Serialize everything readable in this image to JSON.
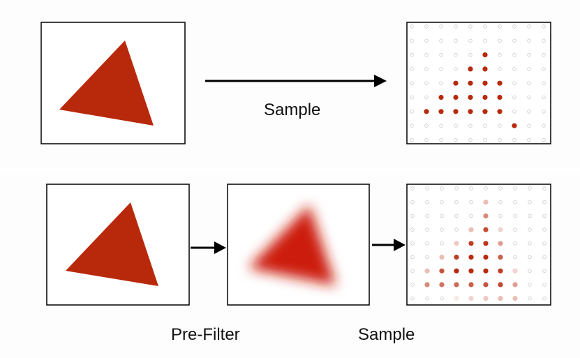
{
  "labels": {
    "top_sample": "Sample",
    "bottom_prefilter": "Pre-Filter",
    "bottom_sample": "Sample"
  },
  "colors": {
    "triangle": "#b8290b",
    "blurred_triangle": "#cc1a0f",
    "sample_dot": "#b8290b",
    "empty_dot": "#c9c9c9",
    "frame": "#000000",
    "arrow": "#000000"
  },
  "sample_grid": {
    "cols": 10,
    "rows": 9,
    "top_filled": [
      [
        5,
        2
      ],
      [
        4,
        3
      ],
      [
        5,
        3
      ],
      [
        3,
        4
      ],
      [
        4,
        4
      ],
      [
        5,
        4
      ],
      [
        6,
        4
      ],
      [
        2,
        5
      ],
      [
        3,
        5
      ],
      [
        4,
        5
      ],
      [
        5,
        5
      ],
      [
        6,
        5
      ],
      [
        1,
        6
      ],
      [
        2,
        6
      ],
      [
        3,
        6
      ],
      [
        4,
        6
      ],
      [
        5,
        6
      ],
      [
        6,
        6
      ],
      [
        7,
        7
      ]
    ],
    "bottom_filled": [
      {
        "c": 5,
        "r": 1,
        "v": 0.3
      },
      {
        "c": 5,
        "r": 2,
        "v": 0.55
      },
      {
        "c": 4,
        "r": 3,
        "v": 0.3
      },
      {
        "c": 5,
        "r": 3,
        "v": 0.85
      },
      {
        "c": 6,
        "r": 3,
        "v": 0.2
      },
      {
        "c": 3,
        "r": 4,
        "v": 0.25
      },
      {
        "c": 4,
        "r": 4,
        "v": 0.9
      },
      {
        "c": 5,
        "r": 4,
        "v": 0.95
      },
      {
        "c": 6,
        "r": 4,
        "v": 0.45
      },
      {
        "c": 2,
        "r": 5,
        "v": 0.3
      },
      {
        "c": 3,
        "r": 5,
        "v": 0.9
      },
      {
        "c": 4,
        "r": 5,
        "v": 1
      },
      {
        "c": 5,
        "r": 5,
        "v": 1
      },
      {
        "c": 6,
        "r": 5,
        "v": 0.75
      },
      {
        "c": 1,
        "r": 6,
        "v": 0.3
      },
      {
        "c": 2,
        "r": 6,
        "v": 0.8
      },
      {
        "c": 3,
        "r": 6,
        "v": 1
      },
      {
        "c": 4,
        "r": 6,
        "v": 1
      },
      {
        "c": 5,
        "r": 6,
        "v": 1
      },
      {
        "c": 6,
        "r": 6,
        "v": 0.9
      },
      {
        "c": 7,
        "r": 6,
        "v": 0.2
      },
      {
        "c": 1,
        "r": 7,
        "v": 0.55
      },
      {
        "c": 2,
        "r": 7,
        "v": 0.65
      },
      {
        "c": 3,
        "r": 7,
        "v": 0.7
      },
      {
        "c": 4,
        "r": 7,
        "v": 0.75
      },
      {
        "c": 5,
        "r": 7,
        "v": 0.8
      },
      {
        "c": 6,
        "r": 7,
        "v": 0.85
      },
      {
        "c": 7,
        "r": 7,
        "v": 0.45
      },
      {
        "c": 3,
        "r": 8,
        "v": 0.1
      },
      {
        "c": 4,
        "r": 8,
        "v": 0.2
      },
      {
        "c": 5,
        "r": 8,
        "v": 0.25
      },
      {
        "c": 6,
        "r": 8,
        "v": 0.3
      },
      {
        "c": 7,
        "r": 8,
        "v": 0.3
      }
    ]
  }
}
